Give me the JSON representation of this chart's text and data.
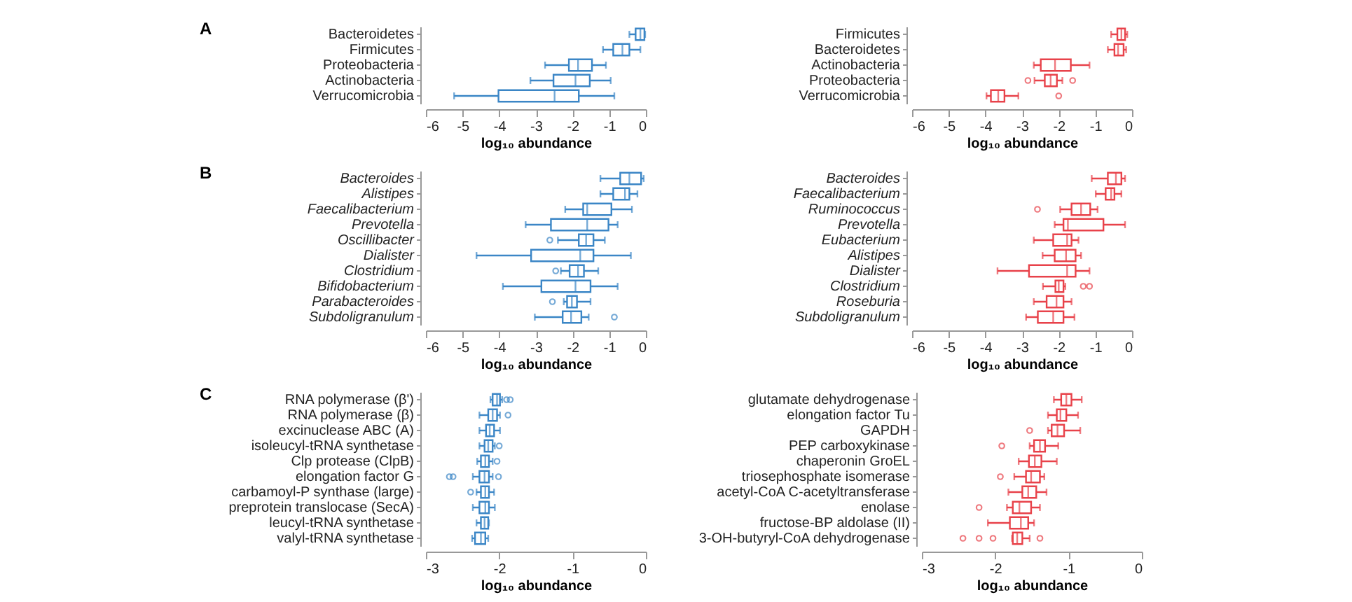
{
  "chart_data": [
    {
      "type": "box",
      "orientation": "horizontal",
      "title": "A",
      "xlabel": "log₁₀ abundance",
      "color": "#3b86c6",
      "xlim": [
        -6,
        0
      ],
      "xticks": [
        -6,
        -5,
        -4,
        -3,
        -2,
        -1,
        0
      ],
      "categories": [
        "Bacteroidetes",
        "Firmicutes",
        "Proteobacteria",
        "Actinobacteria",
        "Verrucomicrobia"
      ],
      "boxes": [
        {
          "low": -0.45,
          "q1": -0.28,
          "median": -0.15,
          "q3": -0.04,
          "high": -0.02
        },
        {
          "low": -1.17,
          "q1": -0.89,
          "median": -0.64,
          "q3": -0.45,
          "high": -0.15
        },
        {
          "low": -2.75,
          "q1": -2.1,
          "median": -1.85,
          "q3": -1.47,
          "high": -1.09
        },
        {
          "low": -3.15,
          "q1": -2.52,
          "median": -1.92,
          "q3": -1.53,
          "high": -0.96
        },
        {
          "low": -5.23,
          "q1": -4.02,
          "median": -2.49,
          "q3": -1.83,
          "high": -0.86
        }
      ]
    },
    {
      "type": "box",
      "orientation": "horizontal",
      "xlabel": "log₁₀ abundance",
      "color": "#e8424a",
      "xlim": [
        -6,
        0
      ],
      "xticks": [
        -6,
        -5,
        -4,
        -3,
        -2,
        -1,
        0
      ],
      "categories": [
        "Firmicutes",
        "Bacteroidetes",
        "Actinobacteria",
        "Proteobacteria",
        "Verrucomicrobia"
      ],
      "boxes": [
        {
          "low": -0.57,
          "q1": -0.4,
          "median": -0.29,
          "q3": -0.19,
          "high": -0.13
        },
        {
          "low": -0.66,
          "q1": -0.48,
          "median": -0.38,
          "q3": -0.23,
          "high": -0.16
        },
        {
          "low": -2.68,
          "q1": -2.49,
          "median": -2.1,
          "q3": -1.67,
          "high": -1.16
        },
        {
          "low": -2.66,
          "q1": -2.38,
          "median": -2.22,
          "q3": -2.05,
          "high": -1.9,
          "outliers": [
            -2.84,
            -1.62
          ]
        },
        {
          "low": -3.97,
          "q1": -3.85,
          "median": -3.65,
          "q3": -3.48,
          "high": -3.1,
          "outliers": [
            -2.0
          ]
        }
      ]
    },
    {
      "type": "box",
      "orientation": "horizontal",
      "title": "B",
      "xlabel": "log₁₀ abundance",
      "color": "#3b86c6",
      "xlim": [
        -6,
        0
      ],
      "xticks": [
        -6,
        -5,
        -4,
        -3,
        -2,
        -1,
        0
      ],
      "categories": [
        "Bacteroides",
        "Alistipes",
        "Faecalibacterium",
        "Prevotella",
        "Oscillibacter",
        "Dialister",
        "Clostridium",
        "Bifidobacterium",
        "Parabacteroides",
        "Subdoligranulum"
      ],
      "boxes": [
        {
          "low": -1.24,
          "q1": -0.7,
          "median": -0.45,
          "q3": -0.13,
          "high": -0.06
        },
        {
          "low": -1.24,
          "q1": -0.89,
          "median": -0.57,
          "q3": -0.45,
          "high": -0.23
        },
        {
          "low": -2.2,
          "q1": -1.71,
          "median": -1.6,
          "q3": -0.94,
          "high": -0.38
        },
        {
          "low": -3.28,
          "q1": -2.59,
          "median": -1.6,
          "q3": -1.02,
          "high": -0.77
        },
        {
          "low": -2.4,
          "q1": -1.83,
          "median": -1.63,
          "q3": -1.43,
          "high": -1.12,
          "outliers": [
            -2.62
          ]
        },
        {
          "low": -4.62,
          "q1": -3.13,
          "median": -1.79,
          "q3": -1.43,
          "high": -0.41
        },
        {
          "low": -2.32,
          "q1": -2.08,
          "median": -1.85,
          "q3": -1.69,
          "high": -1.3,
          "outliers": [
            -2.46
          ]
        },
        {
          "low": -3.9,
          "q1": -2.85,
          "median": -1.92,
          "q3": -1.51,
          "high": -0.77
        },
        {
          "low": -2.24,
          "q1": -2.15,
          "median": -2.02,
          "q3": -1.88,
          "high": -1.51,
          "outliers": [
            -2.55
          ]
        },
        {
          "low": -3.03,
          "q1": -2.27,
          "median": -2.04,
          "q3": -1.76,
          "high": -1.56,
          "outliers": [
            -0.86
          ]
        }
      ]
    },
    {
      "type": "box",
      "orientation": "horizontal",
      "xlabel": "log₁₀ abundance",
      "color": "#e8424a",
      "xlim": [
        -6,
        0
      ],
      "xticks": [
        -6,
        -5,
        -4,
        -3,
        -2,
        -1,
        0
      ],
      "categories": [
        "Bacteroides",
        "Faecalibacterium",
        "Ruminococcus",
        "Prevotella",
        "Eubacterium",
        "Alistipes",
        "Dialister",
        "Clostridium",
        "Roseburia",
        "Subdoligranulum"
      ],
      "boxes": [
        {
          "low": -1.1,
          "q1": -0.66,
          "median": -0.44,
          "q3": -0.29,
          "high": -0.19
        },
        {
          "low": -0.99,
          "q1": -0.72,
          "median": -0.57,
          "q3": -0.48,
          "high": -0.29
        },
        {
          "low": -1.96,
          "q1": -1.65,
          "median": -1.39,
          "q3": -1.14,
          "high": -0.94,
          "outliers": [
            -2.58
          ]
        },
        {
          "low": -2.11,
          "q1": -1.87,
          "median": -1.75,
          "q3": -0.78,
          "high": -0.19
        },
        {
          "low": -2.68,
          "q1": -2.15,
          "median": -1.77,
          "q3": -1.65,
          "high": -1.46
        },
        {
          "low": -2.44,
          "q1": -2.11,
          "median": -1.8,
          "q3": -1.54,
          "high": -1.39
        },
        {
          "low": -3.67,
          "q1": -2.81,
          "median": -1.77,
          "q3": -1.54,
          "high": -1.16
        },
        {
          "low": -2.43,
          "q1": -2.09,
          "median": -2.0,
          "q3": -1.87,
          "high": -1.82,
          "outliers": [
            -1.33,
            -1.16
          ]
        },
        {
          "low": -2.68,
          "q1": -2.33,
          "median": -2.06,
          "q3": -1.87,
          "high": -1.65
        },
        {
          "low": -2.89,
          "q1": -2.57,
          "median": -2.15,
          "q3": -1.87,
          "high": -1.57
        }
      ]
    },
    {
      "type": "box",
      "orientation": "horizontal",
      "title": "C",
      "xlabel": "log₁₀ abundance",
      "color": "#3b86c6",
      "xlim": [
        -3,
        0
      ],
      "xticks": [
        -3,
        -2,
        -1,
        0
      ],
      "categories": [
        "RNA polymerase (β')",
        "RNA polymerase (β)",
        "excinuclease ABC (A)",
        "isoleucyl-tRNA synthetase",
        "Clp protease (ClpB)",
        "elongation factor G",
        "carbamoyl-P synthase (large)",
        "preprotein translocase (SecA)",
        "leucyl-tRNA synthetase",
        "valyl-tRNA synthetase"
      ],
      "boxes": [
        {
          "low": -2.12,
          "q1": -2.09,
          "median": -2.03,
          "q3": -1.99,
          "high": -1.96,
          "outliers": [
            -1.9,
            -1.85
          ]
        },
        {
          "low": -2.27,
          "q1": -2.15,
          "median": -2.09,
          "q3": -2.03,
          "high": -1.99,
          "outliers": [
            -1.88
          ]
        },
        {
          "low": -2.27,
          "q1": -2.18,
          "median": -2.13,
          "q3": -2.07,
          "high": -1.99
        },
        {
          "low": -2.27,
          "q1": -2.2,
          "median": -2.15,
          "q3": -2.09,
          "high": -2.06,
          "outliers": [
            -2.0
          ]
        },
        {
          "low": -2.3,
          "q1": -2.25,
          "median": -2.19,
          "q3": -2.14,
          "high": -2.09,
          "outliers": [
            -2.03
          ]
        },
        {
          "low": -2.36,
          "q1": -2.27,
          "median": -2.2,
          "q3": -2.14,
          "high": -2.09,
          "outliers": [
            -2.68,
            -2.63,
            -2.01
          ]
        },
        {
          "low": -2.31,
          "q1": -2.25,
          "median": -2.19,
          "q3": -2.14,
          "high": -2.07,
          "outliers": [
            -2.39
          ]
        },
        {
          "low": -2.36,
          "q1": -2.27,
          "median": -2.19,
          "q3": -2.14,
          "high": -2.06
        },
        {
          "low": -2.31,
          "q1": -2.25,
          "median": -2.2,
          "q3": -2.15,
          "high": -2.14
        },
        {
          "low": -2.37,
          "q1": -2.33,
          "median": -2.25,
          "q3": -2.19,
          "high": -2.15
        }
      ]
    },
    {
      "type": "box",
      "orientation": "horizontal",
      "xlabel": "log₁₀ abundance",
      "color": "#e8424a",
      "xlim": [
        -3,
        0
      ],
      "xticks": [
        -3,
        -2,
        -1,
        0
      ],
      "categories": [
        "glutamate dehydrogenase",
        "elongation factor Tu",
        "GAPDH",
        "PEP carboxykinase",
        "chaperonin GroEL",
        "triosephosphate isomerase",
        "acetyl-CoA C-acetyltransferase",
        "enolase",
        "fructose-BP aldolase (II)",
        "3-OH-butyryl-CoA dehydrogenase"
      ],
      "boxes": [
        {
          "low": -1.2,
          "q1": -1.1,
          "median": -1.03,
          "q3": -0.96,
          "high": -0.82
        },
        {
          "low": -1.28,
          "q1": -1.16,
          "median": -1.11,
          "q3": -1.03,
          "high": -0.87
        },
        {
          "low": -1.28,
          "q1": -1.23,
          "median": -1.15,
          "q3": -1.06,
          "high": -0.84,
          "outliers": [
            -1.53
          ]
        },
        {
          "low": -1.53,
          "q1": -1.47,
          "median": -1.39,
          "q3": -1.32,
          "high": -1.14,
          "outliers": [
            -1.91
          ]
        },
        {
          "low": -1.68,
          "q1": -1.54,
          "median": -1.46,
          "q3": -1.37,
          "high": -1.16
        },
        {
          "low": -1.74,
          "q1": -1.58,
          "median": -1.51,
          "q3": -1.39,
          "high": -1.33,
          "outliers": [
            -1.93
          ]
        },
        {
          "low": -1.82,
          "q1": -1.63,
          "median": -1.55,
          "q3": -1.44,
          "high": -1.3
        },
        {
          "low": -1.84,
          "q1": -1.76,
          "median": -1.67,
          "q3": -1.51,
          "high": -1.39,
          "outliers": [
            -2.22
          ]
        },
        {
          "low": -2.1,
          "q1": -1.8,
          "median": -1.65,
          "q3": -1.55,
          "high": -1.47
        },
        {
          "low": -1.77,
          "q1": -1.76,
          "median": -1.7,
          "q3": -1.63,
          "high": -1.53,
          "outliers": [
            -2.44,
            -2.22,
            -2.03,
            -1.39
          ]
        }
      ]
    }
  ]
}
